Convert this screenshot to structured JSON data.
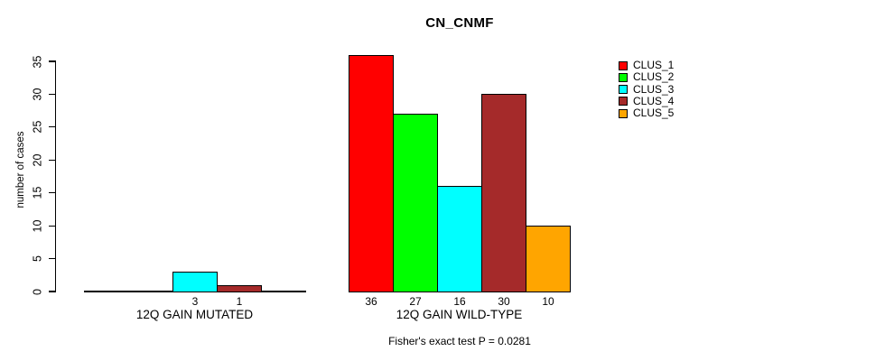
{
  "chart_data": {
    "type": "bar",
    "title": "CN_CNMF",
    "ylabel": "number of cases",
    "ylim": [
      0,
      35
    ],
    "yticks": [
      0,
      5,
      10,
      15,
      20,
      25,
      30,
      35
    ],
    "grid": false,
    "legend_position": "top-right",
    "categories": [
      "12Q GAIN MUTATED",
      "12Q GAIN WILD-TYPE"
    ],
    "series": [
      {
        "name": "CLUS_1",
        "color": "#FF0000",
        "values": [
          0,
          36
        ]
      },
      {
        "name": "CLUS_2",
        "color": "#00FF00",
        "values": [
          0,
          27
        ]
      },
      {
        "name": "CLUS_3",
        "color": "#00FFFF",
        "values": [
          3,
          16
        ]
      },
      {
        "name": "CLUS_4",
        "color": "#A52A2A",
        "values": [
          1,
          30
        ]
      },
      {
        "name": "CLUS_5",
        "color": "#FFA500",
        "values": [
          0,
          10
        ]
      }
    ],
    "bar_value_labels_shown_only_for_nonzero": true,
    "annotation": "Fisher's exact test P = 0.0281",
    "axis_color": "#000000"
  }
}
